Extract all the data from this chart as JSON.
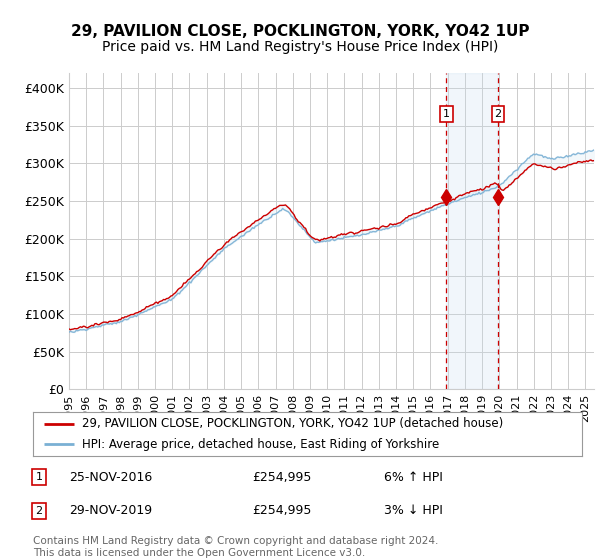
{
  "title": "29, PAVILION CLOSE, POCKLINGTON, YORK, YO42 1UP",
  "subtitle": "Price paid vs. HM Land Registry's House Price Index (HPI)",
  "ylabel_ticks": [
    "£0",
    "£50K",
    "£100K",
    "£150K",
    "£200K",
    "£250K",
    "£300K",
    "£350K",
    "£400K"
  ],
  "ytick_values": [
    0,
    50000,
    100000,
    150000,
    200000,
    250000,
    300000,
    350000,
    400000
  ],
  "ylim": [
    0,
    420000
  ],
  "xlim_start": 1995.0,
  "xlim_end": 2025.5,
  "house_color": "#cc0000",
  "hpi_color": "#7ab0d4",
  "hpi_fill_color": "#d8eaf5",
  "marker1_x": 2016.92,
  "marker2_x": 2019.92,
  "marker1_y": 254995,
  "marker2_y": 254995,
  "vline_color": "#cc0000",
  "shade_color": "#c8dff0",
  "legend_line1": "29, PAVILION CLOSE, POCKLINGTON, YORK, YO42 1UP (detached house)",
  "legend_line2": "HPI: Average price, detached house, East Riding of Yorkshire",
  "note1_date": "25-NOV-2016",
  "note1_price": "£254,995",
  "note1_hpi": "6% ↑ HPI",
  "note2_date": "29-NOV-2019",
  "note2_price": "£254,995",
  "note2_hpi": "3% ↓ HPI",
  "footer": "Contains HM Land Registry data © Crown copyright and database right 2024.\nThis data is licensed under the Open Government Licence v3.0.",
  "background_color": "#ffffff",
  "grid_color": "#cccccc",
  "title_fontsize": 11,
  "subtitle_fontsize": 10,
  "tick_fontsize": 9
}
